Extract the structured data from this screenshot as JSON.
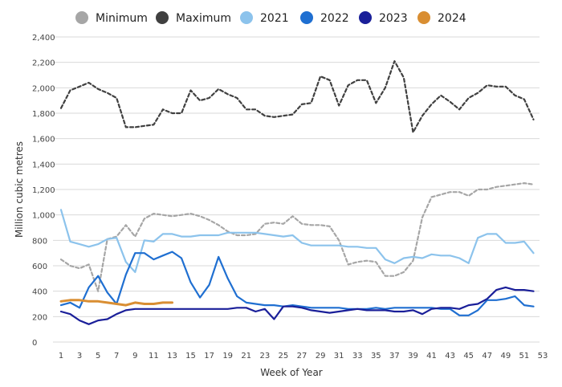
{
  "chart_data": {
    "type": "line",
    "title": "",
    "xlabel": "Week of Year",
    "ylabel": "Million cubic metres",
    "xlim": [
      1,
      53
    ],
    "ylim": [
      0,
      2400
    ],
    "x_ticks": [
      1,
      3,
      5,
      7,
      9,
      11,
      13,
      15,
      17,
      19,
      21,
      23,
      25,
      27,
      29,
      31,
      33,
      35,
      37,
      39,
      41,
      43,
      45,
      47,
      49,
      51,
      53
    ],
    "y_ticks": [
      0,
      200,
      400,
      600,
      800,
      1000,
      1200,
      1400,
      1600,
      1800,
      2000,
      2200,
      2400
    ],
    "y_tick_labels": [
      "0",
      "200",
      "400",
      "600",
      "800",
      "1,000",
      "1,200",
      "1,400",
      "1,600",
      "1,800",
      "2,000",
      "2,200",
      "2,400"
    ],
    "grid": "horizontal",
    "legend_position": "top",
    "series": [
      {
        "name": "Minimum",
        "color": "#a6a6a6",
        "dash": true,
        "legend_color": "#a6a6a6",
        "x": [
          1,
          2,
          3,
          4,
          5,
          6,
          7,
          8,
          9,
          10,
          11,
          12,
          13,
          14,
          15,
          16,
          17,
          18,
          19,
          20,
          21,
          22,
          23,
          24,
          25,
          26,
          27,
          28,
          29,
          30,
          31,
          32,
          33,
          34,
          35,
          36,
          37,
          38,
          39,
          40,
          41,
          42,
          43,
          44,
          45,
          46,
          47,
          48,
          49,
          50,
          51,
          52
        ],
        "values": [
          650,
          600,
          580,
          610,
          400,
          810,
          830,
          920,
          830,
          970,
          1010,
          1000,
          990,
          1000,
          1010,
          990,
          960,
          920,
          870,
          840,
          840,
          850,
          930,
          940,
          930,
          990,
          930,
          920,
          920,
          910,
          800,
          610,
          630,
          640,
          630,
          520,
          520,
          550,
          640,
          980,
          1140,
          1160,
          1180,
          1180,
          1150,
          1200,
          1200,
          1220,
          1230,
          1240,
          1250,
          1240
        ]
      },
      {
        "name": "Maximum",
        "color": "#404040",
        "dash": true,
        "legend_color": "#404040",
        "x": [
          1,
          2,
          3,
          4,
          5,
          6,
          7,
          8,
          9,
          10,
          11,
          12,
          13,
          14,
          15,
          16,
          17,
          18,
          19,
          20,
          21,
          22,
          23,
          24,
          25,
          26,
          27,
          28,
          29,
          30,
          31,
          32,
          33,
          34,
          35,
          36,
          37,
          38,
          39,
          40,
          41,
          42,
          43,
          44,
          45,
          46,
          47,
          48,
          49,
          50,
          51,
          52
        ],
        "values": [
          1840,
          1980,
          2010,
          2040,
          1990,
          1960,
          1920,
          1690,
          1690,
          1700,
          1710,
          1830,
          1800,
          1800,
          1980,
          1900,
          1920,
          1990,
          1950,
          1920,
          1830,
          1830,
          1780,
          1770,
          1780,
          1790,
          1870,
          1880,
          2090,
          2060,
          1860,
          2020,
          2060,
          2060,
          1880,
          2000,
          2210,
          2080,
          1650,
          1780,
          1870,
          1940,
          1890,
          1830,
          1920,
          1960,
          2020,
          2010,
          2010,
          1940,
          1910,
          1750
        ]
      },
      {
        "name": "2021",
        "color": "#8cc3ec",
        "dash": false,
        "legend_color": "#8cc3ec",
        "x": [
          1,
          2,
          3,
          4,
          5,
          6,
          7,
          8,
          9,
          10,
          11,
          12,
          13,
          14,
          15,
          16,
          17,
          18,
          19,
          20,
          21,
          22,
          23,
          24,
          25,
          26,
          27,
          28,
          29,
          30,
          31,
          32,
          33,
          34,
          35,
          36,
          37,
          38,
          39,
          40,
          41,
          42,
          43,
          44,
          45,
          46,
          47,
          48,
          49,
          50,
          51,
          52
        ],
        "values": [
          1040,
          790,
          770,
          750,
          770,
          810,
          820,
          630,
          550,
          800,
          790,
          850,
          850,
          830,
          830,
          840,
          840,
          840,
          860,
          860,
          860,
          860,
          850,
          840,
          830,
          840,
          780,
          760,
          760,
          760,
          760,
          750,
          750,
          740,
          740,
          650,
          620,
          660,
          670,
          660,
          690,
          680,
          680,
          660,
          620,
          820,
          850,
          850,
          780,
          780,
          790,
          700
        ]
      },
      {
        "name": "2022",
        "color": "#1f6fd1",
        "dash": false,
        "legend_color": "#1f6fd1",
        "x": [
          1,
          2,
          3,
          4,
          5,
          6,
          7,
          8,
          9,
          10,
          11,
          12,
          13,
          14,
          15,
          16,
          17,
          18,
          19,
          20,
          21,
          22,
          23,
          24,
          25,
          26,
          27,
          28,
          29,
          30,
          31,
          32,
          33,
          34,
          35,
          36,
          37,
          38,
          39,
          40,
          41,
          42,
          43,
          44,
          45,
          46,
          47,
          48,
          49,
          50,
          51,
          52
        ],
        "values": [
          290,
          310,
          270,
          430,
          520,
          390,
          300,
          530,
          700,
          700,
          650,
          680,
          710,
          660,
          470,
          350,
          450,
          670,
          500,
          360,
          310,
          300,
          290,
          290,
          280,
          290,
          280,
          270,
          270,
          270,
          270,
          260,
          260,
          260,
          270,
          260,
          270,
          270,
          270,
          270,
          270,
          260,
          260,
          210,
          210,
          250,
          330,
          330,
          340,
          360,
          290,
          280
        ]
      },
      {
        "name": "2023",
        "color": "#1a1f99",
        "dash": false,
        "legend_color": "#1a1f99",
        "x": [
          1,
          2,
          3,
          4,
          5,
          6,
          7,
          8,
          9,
          10,
          11,
          12,
          13,
          14,
          15,
          16,
          17,
          18,
          19,
          20,
          21,
          22,
          23,
          24,
          25,
          26,
          27,
          28,
          29,
          30,
          31,
          32,
          33,
          34,
          35,
          36,
          37,
          38,
          39,
          40,
          41,
          42,
          43,
          44,
          45,
          46,
          47,
          48,
          49,
          50,
          51,
          52
        ],
        "values": [
          240,
          220,
          170,
          140,
          170,
          180,
          220,
          250,
          260,
          260,
          260,
          260,
          260,
          260,
          260,
          260,
          260,
          260,
          260,
          270,
          270,
          240,
          260,
          180,
          280,
          280,
          270,
          250,
          240,
          230,
          240,
          250,
          260,
          250,
          250,
          250,
          240,
          240,
          250,
          220,
          260,
          270,
          270,
          260,
          290,
          300,
          340,
          410,
          430,
          410,
          410,
          400
        ]
      },
      {
        "name": "2024",
        "color": "#d98e32",
        "dash": false,
        "legend_color": "#d98e32",
        "x": [
          1,
          2,
          3,
          4,
          5,
          6,
          7,
          8,
          9,
          10,
          11,
          12,
          13
        ],
        "values": [
          320,
          330,
          330,
          320,
          320,
          310,
          300,
          290,
          310,
          300,
          300,
          310,
          310
        ]
      }
    ]
  }
}
